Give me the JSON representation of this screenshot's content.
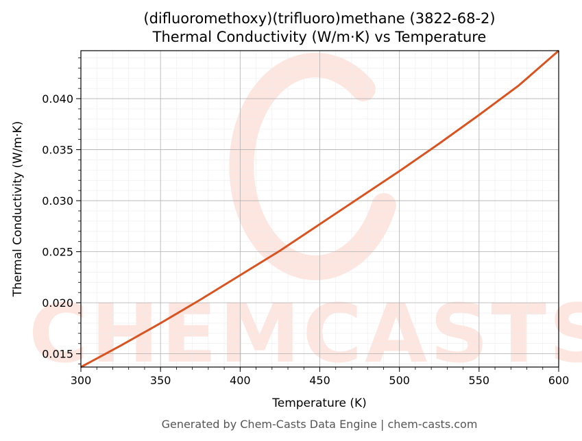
{
  "chart_data": {
    "type": "line",
    "title_line1": "(difluoromethoxy)(trifluoro)methane (3822-68-2)",
    "title_line2": "Thermal Conductivity (W/m·K) vs Temperature",
    "xlabel": "Temperature (K)",
    "ylabel": "Thermal Conductivity (W/m·K)",
    "xlim": [
      300,
      600
    ],
    "ylim": [
      0.0137,
      0.0447
    ],
    "xticks": [
      300,
      350,
      400,
      450,
      500,
      550,
      600
    ],
    "xtick_labels": [
      "300",
      "350",
      "400",
      "450",
      "500",
      "550",
      "600"
    ],
    "yticks": [
      0.015,
      0.02,
      0.025,
      0.03,
      0.035,
      0.04
    ],
    "ytick_labels": [
      "0.015",
      "0.020",
      "0.025",
      "0.030",
      "0.035",
      "0.040"
    ],
    "grid": true,
    "series": [
      {
        "color": "#d95320",
        "x": [
          300,
          325,
          350,
          375,
          400,
          425,
          450,
          475,
          500,
          525,
          550,
          575,
          600
        ],
        "values": [
          0.0137,
          0.0158,
          0.018,
          0.0203,
          0.0227,
          0.0251,
          0.0277,
          0.0303,
          0.0329,
          0.0356,
          0.0384,
          0.0413,
          0.0447
        ]
      }
    ]
  },
  "watermark": {
    "text": "CHEMCASTS",
    "color": "#fde3dd"
  },
  "footer": "Generated by Chem-Casts Data Engine | chem-casts.com"
}
